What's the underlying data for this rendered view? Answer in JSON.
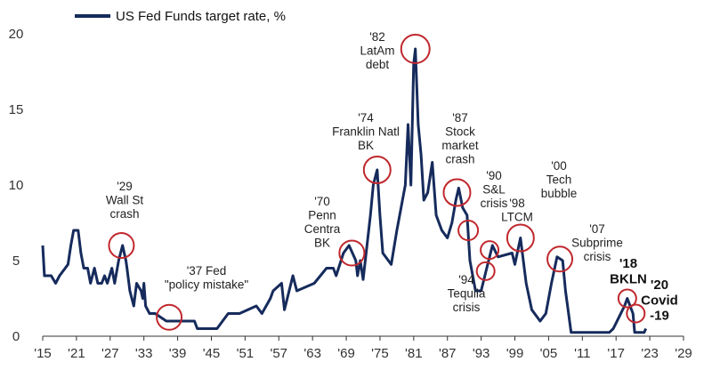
{
  "chart_data": {
    "type": "line",
    "title": "",
    "xlabel": "",
    "ylabel": "",
    "legend": {
      "placement": "top-left",
      "label": "US Fed Funds target rate, %"
    },
    "xlim": [
      1915,
      2029
    ],
    "ylim": [
      0,
      20
    ],
    "y_ticks": [
      0,
      5,
      10,
      15,
      20
    ],
    "x_tick_values": [
      1915,
      1921,
      1927,
      1933,
      1939,
      1945,
      1951,
      1957,
      1963,
      1969,
      1975,
      1981,
      1987,
      1993,
      1999,
      2005,
      2011,
      2017,
      2023,
      2029
    ],
    "x_tick_labels": [
      "'15",
      "'21",
      "'27",
      "'33",
      "'39",
      "'45",
      "'51",
      "'57",
      "'63",
      "'69",
      "'75",
      "'81",
      "'87",
      "'93",
      "'99",
      "'05",
      "'11",
      "'17",
      "'23",
      "'29"
    ],
    "grid": false,
    "colors": {
      "line": "#162b5c",
      "circle": "#c0282d",
      "axis": "#333333"
    },
    "series": [
      {
        "name": "US Fed Funds target rate, %",
        "points": [
          [
            1915.0,
            6.0
          ],
          [
            1915.3,
            4.0
          ],
          [
            1916.5,
            4.0
          ],
          [
            1917.3,
            3.5
          ],
          [
            1918.0,
            4.0
          ],
          [
            1919.0,
            4.5
          ],
          [
            1919.5,
            4.75
          ],
          [
            1920.0,
            6.0
          ],
          [
            1920.5,
            7.0
          ],
          [
            1921.3,
            7.0
          ],
          [
            1921.8,
            5.5
          ],
          [
            1922.3,
            4.5
          ],
          [
            1923.0,
            4.5
          ],
          [
            1923.5,
            3.5
          ],
          [
            1924.2,
            4.5
          ],
          [
            1924.8,
            3.5
          ],
          [
            1925.5,
            3.5
          ],
          [
            1926.0,
            4.0
          ],
          [
            1926.5,
            3.5
          ],
          [
            1927.3,
            4.5
          ],
          [
            1927.8,
            3.5
          ],
          [
            1928.5,
            5.0
          ],
          [
            1929.2,
            6.0
          ],
          [
            1929.8,
            5.0
          ],
          [
            1930.0,
            4.5
          ],
          [
            1930.5,
            3.0
          ],
          [
            1931.2,
            2.0
          ],
          [
            1931.7,
            3.5
          ],
          [
            1932.5,
            3.0
          ],
          [
            1932.8,
            2.5
          ],
          [
            1933.0,
            3.5
          ],
          [
            1933.3,
            2.0
          ],
          [
            1934.0,
            1.5
          ],
          [
            1935.0,
            1.5
          ],
          [
            1937.0,
            1.0
          ],
          [
            1942.0,
            1.0
          ],
          [
            1942.5,
            0.5
          ],
          [
            1946.0,
            0.5
          ],
          [
            1948.0,
            1.5
          ],
          [
            1950.0,
            1.5
          ],
          [
            1953.0,
            2.0
          ],
          [
            1954.0,
            1.5
          ],
          [
            1955.5,
            2.5
          ],
          [
            1956.0,
            3.0
          ],
          [
            1957.5,
            3.5
          ],
          [
            1958.0,
            1.75
          ],
          [
            1959.5,
            4.0
          ],
          [
            1960.2,
            3.0
          ],
          [
            1963.3,
            3.5
          ],
          [
            1965.5,
            4.5
          ],
          [
            1966.7,
            4.5
          ],
          [
            1967.2,
            4.0
          ],
          [
            1968.5,
            5.5
          ],
          [
            1969.5,
            6.0
          ],
          [
            1970.7,
            5.0
          ],
          [
            1971.0,
            4.0
          ],
          [
            1971.5,
            5.0
          ],
          [
            1972.0,
            3.75
          ],
          [
            1973.3,
            8.0
          ],
          [
            1973.8,
            10.0
          ],
          [
            1974.5,
            11.0
          ],
          [
            1975.0,
            8.0
          ],
          [
            1975.5,
            5.5
          ],
          [
            1977.0,
            4.75
          ],
          [
            1978.0,
            7.0
          ],
          [
            1979.5,
            10.0
          ],
          [
            1980.0,
            14.0
          ],
          [
            1980.5,
            10.0
          ],
          [
            1981.0,
            18.0
          ],
          [
            1981.3,
            19.0
          ],
          [
            1981.8,
            14.0
          ],
          [
            1982.3,
            12.0
          ],
          [
            1982.8,
            9.0
          ],
          [
            1983.5,
            9.5
          ],
          [
            1984.3,
            11.5
          ],
          [
            1985.0,
            8.0
          ],
          [
            1986.0,
            7.0
          ],
          [
            1987.0,
            6.5
          ],
          [
            1987.8,
            7.5
          ],
          [
            1988.5,
            9.0
          ],
          [
            1989.0,
            9.8
          ],
          [
            1989.7,
            8.5
          ],
          [
            1990.5,
            8.0
          ],
          [
            1991.0,
            5.0
          ],
          [
            1992.0,
            3.0
          ],
          [
            1993.0,
            3.0
          ],
          [
            1994.0,
            4.5
          ],
          [
            1995.0,
            6.0
          ],
          [
            1996.0,
            5.25
          ],
          [
            1998.5,
            5.5
          ],
          [
            1999.0,
            4.75
          ],
          [
            2000.0,
            6.5
          ],
          [
            2001.0,
            3.5
          ],
          [
            2002.0,
            1.75
          ],
          [
            2003.5,
            1.0
          ],
          [
            2004.5,
            1.5
          ],
          [
            2005.5,
            3.5
          ],
          [
            2006.5,
            5.25
          ],
          [
            2007.5,
            5.0
          ],
          [
            2008.0,
            3.0
          ],
          [
            2009.0,
            0.25
          ],
          [
            2015.8,
            0.25
          ],
          [
            2016.5,
            0.5
          ],
          [
            2017.5,
            1.25
          ],
          [
            2018.5,
            2.0
          ],
          [
            2019.0,
            2.5
          ],
          [
            2019.5,
            2.0
          ],
          [
            2020.0,
            1.5
          ],
          [
            2020.3,
            0.25
          ],
          [
            2022.0,
            0.25
          ],
          [
            2022.3,
            0.5
          ]
        ]
      }
    ],
    "annotations": [
      {
        "text": [
          "'29",
          "Wall St",
          "crash"
        ],
        "x": 1929,
        "y": 6.0,
        "circle": true
      },
      {
        "text": [
          "'37 Fed",
          "\"policy mistake\""
        ],
        "x": 1937.5,
        "y": 1.25,
        "circle": true
      },
      {
        "text": [
          "'70",
          "Penn",
          "Centra",
          "BK"
        ],
        "x": 1970.0,
        "y": 5.5,
        "circle": true
      },
      {
        "text": [
          "'74",
          "Franklin Natl",
          "BK"
        ],
        "x": 1974.5,
        "y": 11.0,
        "circle": true
      },
      {
        "text": [
          "'82",
          "LatAm",
          "debt"
        ],
        "x": 1981.3,
        "y": 19.0,
        "circle": true
      },
      {
        "text": [
          "'87",
          "Stock",
          "market",
          "crash"
        ],
        "x": 1988.7,
        "y": 9.5,
        "circle": true
      },
      {
        "text": [
          "'90",
          "S&L",
          "crisis"
        ],
        "x": 1990.7,
        "y": 7.0,
        "circle": true
      },
      {
        "text": [
          "'98",
          "LTCM"
        ],
        "x": 1994.5,
        "y": 5.7,
        "circle": true
      },
      {
        "text": [
          "'94",
          "Tequila",
          "crisis"
        ],
        "x": 1993.8,
        "y": 4.3,
        "circle": true
      },
      {
        "text": [
          "'00",
          "Tech",
          "bubble"
        ],
        "x": 2000.0,
        "y": 6.5,
        "circle": true
      },
      {
        "text": [
          "'07",
          "Subprime",
          "crisis"
        ],
        "x": 2007.0,
        "y": 5.1,
        "circle": true
      },
      {
        "text": [
          "'18",
          "BKLN"
        ],
        "x": 2019.0,
        "y": 2.5,
        "circle": true
      },
      {
        "text": [
          "'20",
          "Covid",
          "-19"
        ],
        "x": 2020.5,
        "y": 1.5,
        "circle": true
      }
    ]
  }
}
